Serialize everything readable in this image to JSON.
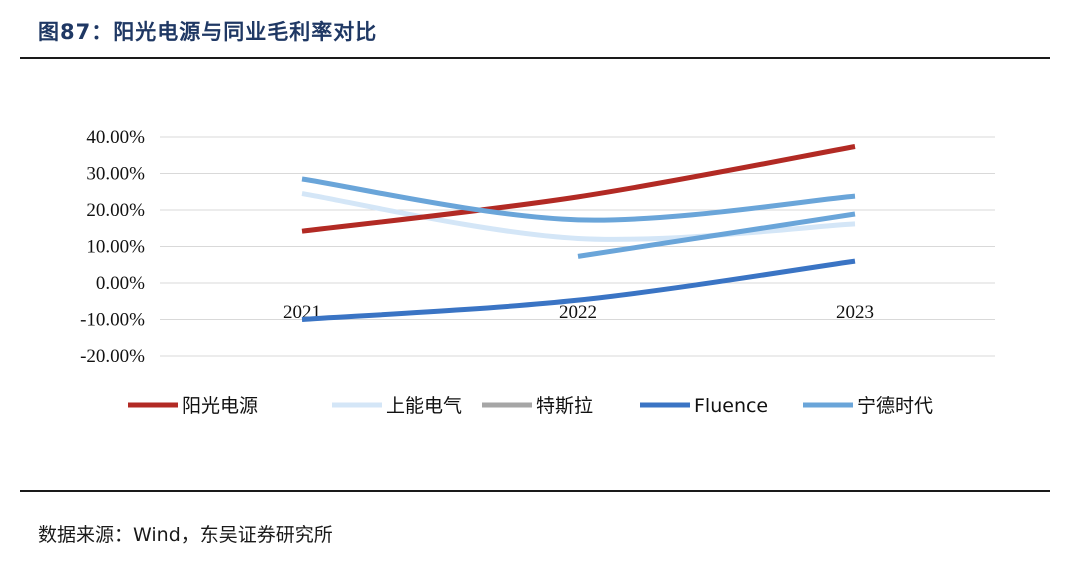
{
  "header": {
    "title": "图87：阳光电源与同业毛利率对比"
  },
  "footer": {
    "source": "数据来源：Wind，东吴证券研究所"
  },
  "chart_data": {
    "type": "line",
    "smooth": true,
    "categories": [
      "2021",
      "2022",
      "2023"
    ],
    "yticks": [
      "40.00%",
      "30.00%",
      "20.00%",
      "10.00%",
      "0.00%",
      "-10.00%",
      "-20.00%"
    ],
    "ylim": [
      -20,
      40
    ],
    "grid": true,
    "legend_position": "bottom",
    "series": [
      {
        "name": "阳光电源",
        "color": "#b22a24",
        "values": [
          14.2,
          23.6,
          37.4
        ]
      },
      {
        "name": "上能电气",
        "color": "#d4e6f7",
        "values": [
          24.5,
          12.2,
          16.2
        ]
      },
      {
        "name": "特斯拉",
        "color": "#a6a6a6",
        "values": [
          null,
          null,
          null
        ]
      },
      {
        "name": "Fluence",
        "color": "#3a74c4",
        "values": [
          -10.0,
          -4.7,
          6.0
        ]
      },
      {
        "name": "宁德时代",
        "color": "#6aa5d9",
        "values": [
          28.5,
          17.3,
          23.8
        ]
      },
      {
        "name": "",
        "color": "#6aa5d9",
        "values": [
          null,
          7.3,
          18.9
        ]
      }
    ]
  }
}
